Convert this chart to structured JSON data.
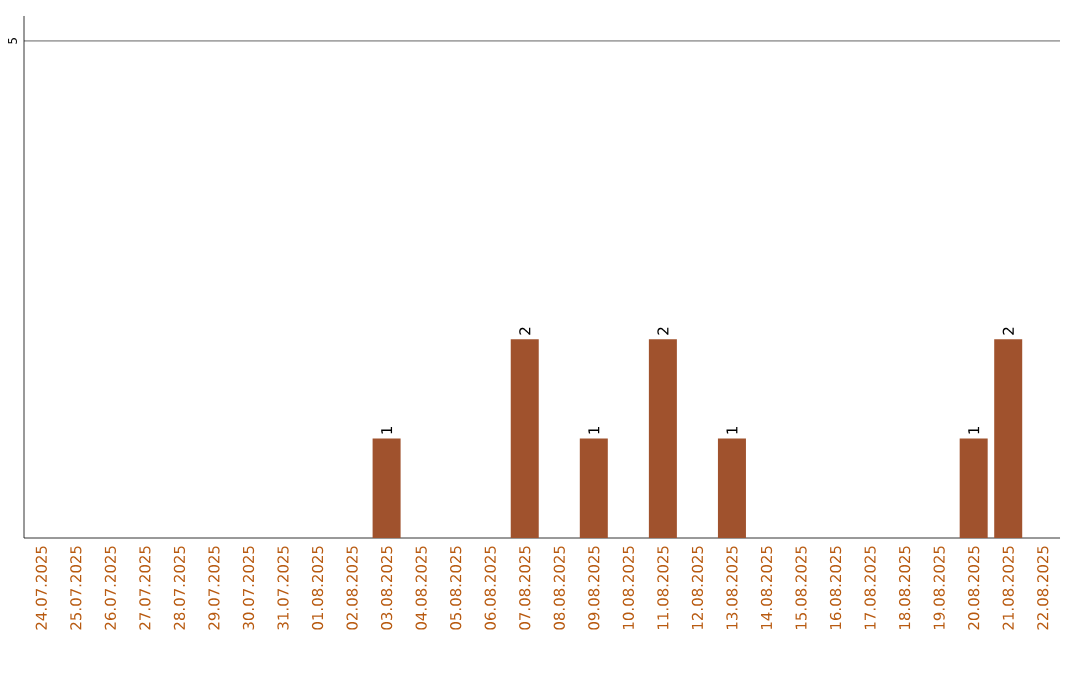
{
  "chart_data": {
    "type": "bar",
    "categories": [
      "24.07.2025",
      "25.07.2025",
      "26.07.2025",
      "27.07.2025",
      "28.07.2025",
      "29.07.2025",
      "30.07.2025",
      "31.07.2025",
      "01.08.2025",
      "02.08.2025",
      "03.08.2025",
      "04.08.2025",
      "05.08.2025",
      "06.08.2025",
      "07.08.2025",
      "08.08.2025",
      "09.08.2025",
      "10.08.2025",
      "11.08.2025",
      "12.08.2025",
      "13.08.2025",
      "14.08.2025",
      "15.08.2025",
      "16.08.2025",
      "17.08.2025",
      "18.08.2025",
      "19.08.2025",
      "20.08.2025",
      "21.08.2025",
      "22.08.2025"
    ],
    "values": [
      0,
      0,
      0,
      0,
      0,
      0,
      0,
      0,
      0,
      0,
      1,
      0,
      0,
      0,
      2,
      0,
      1,
      0,
      2,
      0,
      1,
      0,
      0,
      0,
      0,
      0,
      0,
      1,
      2,
      0
    ],
    "value_labels": [
      null,
      null,
      null,
      null,
      null,
      null,
      null,
      null,
      null,
      null,
      "1",
      null,
      null,
      null,
      "2",
      null,
      "1",
      null,
      "2",
      null,
      "1",
      null,
      null,
      null,
      null,
      null,
      null,
      "1",
      "2",
      null
    ],
    "color": "#a0522d",
    "ylim": [
      0,
      5.25
    ],
    "yticks": [
      5
    ],
    "grid": "y"
  }
}
